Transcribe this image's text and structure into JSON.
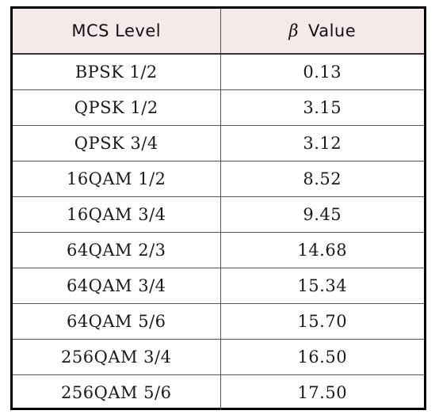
{
  "table": {
    "headers": {
      "mcs_level": "MCS Level",
      "beta_symbol": "β",
      "beta_value": "Value"
    },
    "rows": [
      {
        "mcs": "BPSK 1/2",
        "beta": "0.13"
      },
      {
        "mcs": "QPSK 1/2",
        "beta": "3.15"
      },
      {
        "mcs": "QPSK 3/4",
        "beta": "3.12"
      },
      {
        "mcs": "16QAM 1/2",
        "beta": "8.52"
      },
      {
        "mcs": "16QAM 3/4",
        "beta": "9.45"
      },
      {
        "mcs": "64QAM 2/3",
        "beta": "14.68"
      },
      {
        "mcs": "64QAM 3/4",
        "beta": "15.34"
      },
      {
        "mcs": "64QAM 5/6",
        "beta": "15.70"
      },
      {
        "mcs": "256QAM 3/4",
        "beta": "16.50"
      },
      {
        "mcs": "256QAM 5/6",
        "beta": "17.50"
      }
    ]
  },
  "colors": {
    "header_background": "#f6e9e9",
    "border": "#000000"
  }
}
